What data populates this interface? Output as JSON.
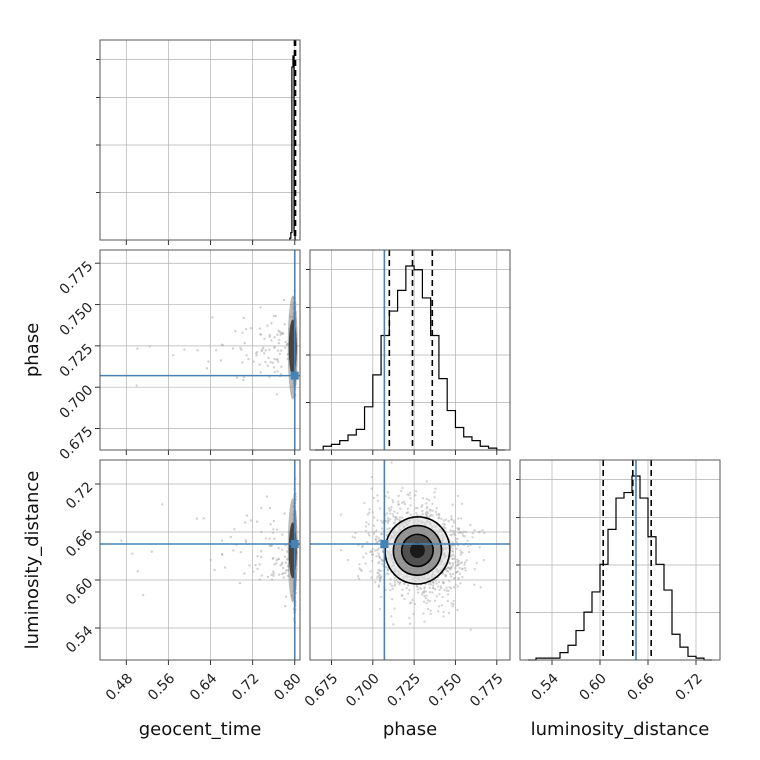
{
  "chart_data": {
    "type": "corner",
    "parameters": [
      "geocent_time",
      "phase",
      "luminosity_distance"
    ],
    "truths": {
      "geocent_time": 0.8,
      "phase": 0.707,
      "luminosity_distance": 0.645
    },
    "axes": {
      "geocent_time": {
        "range": [
          0.43,
          0.81
        ],
        "ticks": [
          "0.48",
          "0.56",
          "0.64",
          "0.72",
          "0.80"
        ],
        "tick_values": [
          0.48,
          0.56,
          0.64,
          0.72,
          0.8
        ]
      },
      "phase": {
        "range": [
          0.662,
          0.783
        ],
        "ticks": [
          "0.675",
          "0.700",
          "0.725",
          "0.750",
          "0.775"
        ],
        "tick_values": [
          0.675,
          0.7,
          0.725,
          0.75,
          0.775
        ]
      },
      "luminosity_distance": {
        "range": [
          0.5,
          0.75
        ],
        "ticks": [
          "0.54",
          "0.60",
          "0.66",
          "0.72"
        ],
        "tick_values": [
          0.54,
          0.6,
          0.66,
          0.72
        ]
      }
    },
    "histograms": {
      "geocent_time": {
        "bin_edges": [
          0.7906,
          0.7926,
          0.7946,
          0.7966,
          0.7986,
          0.8006,
          0.8026
        ],
        "counts": [
          0.01,
          0.04,
          0.94,
          1.0,
          0.05,
          0.0
        ],
        "quantiles": [
          0.7995,
          0.8005,
          0.8015
        ]
      },
      "phase": {
        "bin_edges": [
          0.665,
          0.67,
          0.675,
          0.68,
          0.685,
          0.69,
          0.695,
          0.7,
          0.705,
          0.71,
          0.715,
          0.72,
          0.725,
          0.73,
          0.735,
          0.74,
          0.745,
          0.75,
          0.755,
          0.76,
          0.765,
          0.77,
          0.775,
          0.78
        ],
        "counts": [
          0.0,
          0.02,
          0.03,
          0.05,
          0.08,
          0.11,
          0.23,
          0.4,
          0.61,
          0.74,
          0.85,
          0.98,
          0.96,
          0.81,
          0.61,
          0.38,
          0.21,
          0.12,
          0.07,
          0.05,
          0.02,
          0.01,
          0.0
        ],
        "quantiles": [
          0.71,
          0.724,
          0.736
        ]
      },
      "luminosity_distance": {
        "bin_edges": [
          0.51,
          0.52,
          0.53,
          0.54,
          0.55,
          0.56,
          0.57,
          0.58,
          0.59,
          0.6,
          0.61,
          0.62,
          0.63,
          0.64,
          0.65,
          0.66,
          0.67,
          0.68,
          0.69,
          0.7,
          0.71,
          0.72,
          0.73,
          0.74
        ],
        "counts": [
          0.0,
          0.01,
          0.01,
          0.01,
          0.04,
          0.08,
          0.16,
          0.26,
          0.37,
          0.52,
          0.71,
          0.88,
          0.91,
          1.0,
          0.88,
          0.67,
          0.52,
          0.38,
          0.14,
          0.07,
          0.02,
          0.01,
          0.0
        ],
        "quantiles": [
          0.604,
          0.641,
          0.664
        ]
      }
    },
    "contours_2d": {
      "phase_vs_luminosity_distance": {
        "center": [
          0.727,
          0.637
        ],
        "levels_sigma": [
          {
            "sx": 0.0045,
            "sy": 0.0095
          },
          {
            "sx": 0.0095,
            "sy": 0.02
          },
          {
            "sx": 0.0145,
            "sy": 0.031
          },
          {
            "sx": 0.0195,
            "sy": 0.042
          }
        ]
      },
      "geocent_time_vs_phase": {
        "center": [
          0.8,
          0.724
        ]
      },
      "geocent_time_vs_luminosity_distance": {
        "center": [
          0.8,
          0.637
        ]
      }
    },
    "grid": true,
    "colors": {
      "truth": "#4682b4",
      "hist": "#000000",
      "points": "#b0b0b0",
      "grid": "#b0b0b0"
    }
  }
}
